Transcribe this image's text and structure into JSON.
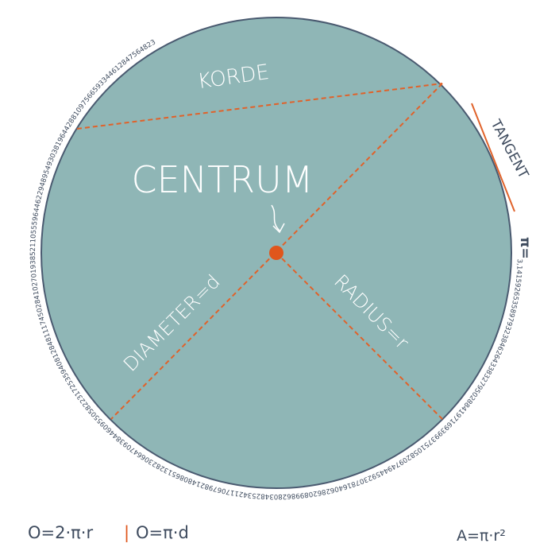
{
  "labels": {
    "chord": "KORDE",
    "center": "CENTRUM",
    "tangent": "TANGENT",
    "diameter": "DIAMETER=d",
    "radius": "RADIUS=r",
    "pi_symbol": "π=",
    "pi_digits": "3,14159265358979323846264338327950288419716939937510582097494459230781640628620899862803482534211706798214808651328230664709384460955058223172535940812848111745028410270193852110555964462294895493038196442881097566593344612847564823"
  },
  "formulas": {
    "circumference_r": "O=2·π·r",
    "separator": "|",
    "circumference_d": "O=π·d",
    "area": "A=π·r²"
  }
}
